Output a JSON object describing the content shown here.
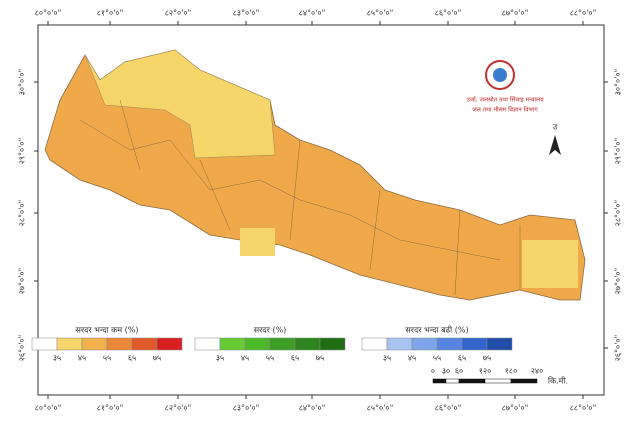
{
  "axis_labels": {
    "top": [
      "८०°०'०\"",
      "८१°०'०\"",
      "८२°०'०\"",
      "८३°०'०\"",
      "८४°०'०\"",
      "८५°०'०\"",
      "८६°०'०\"",
      "८७°०'०\"",
      "८८°०'०\""
    ],
    "bottom": [
      "८०°०'०\"",
      "८१°०'०\"",
      "८२°०'०\"",
      "८३°०'०\"",
      "८४°०'०\"",
      "८५°०'०\"",
      "८६°०'०\"",
      "८७°०'०\"",
      "८८°०'०\""
    ],
    "left": [
      "३०°०'०\"",
      "२९°०'०\"",
      "२८°०'०\"",
      "२७°०'०\"",
      "२६°०'०\""
    ],
    "right": [
      "३०°०'०\"",
      "२९°०'०\"",
      "२८°०'०\"",
      "२७°०'०\"",
      "२६°०'०\""
    ]
  },
  "logo": {
    "line1": "उर्जा, जलस्रोत तथा सिंचाइ मन्त्रालय",
    "line2": "जल तथा मौसम विज्ञान विभाग"
  },
  "north": "उ",
  "legends": [
    {
      "title": "सरदर भन्दा कम (%)",
      "classes": [
        "३५",
        "४५",
        "५५",
        "६५",
        "७५"
      ],
      "colors": [
        "#ffffff",
        "#f6d66a",
        "#f2b04e",
        "#ea8a38",
        "#e35a2a",
        "#d92020"
      ]
    },
    {
      "title": "सरदर (%)",
      "classes": [
        "३५",
        "४५",
        "५५",
        "६५",
        "७५"
      ],
      "colors": [
        "#ffffff",
        "#66cc33",
        "#4cb82a",
        "#3a9e22",
        "#2b861b",
        "#1f6e14"
      ]
    },
    {
      "title": "सरदर भन्दा बढी (%)",
      "classes": [
        "३५",
        "४५",
        "५५",
        "६५",
        "७५"
      ],
      "colors": [
        "#ffffff",
        "#a9c4f2",
        "#7fa6ea",
        "#5585de",
        "#3366cc",
        "#1f4fa8"
      ]
    }
  ],
  "scale": {
    "ticks": [
      "०",
      "३०",
      "६०",
      "१२०",
      "१८०",
      "२४०"
    ],
    "unit": "कि.मी."
  }
}
